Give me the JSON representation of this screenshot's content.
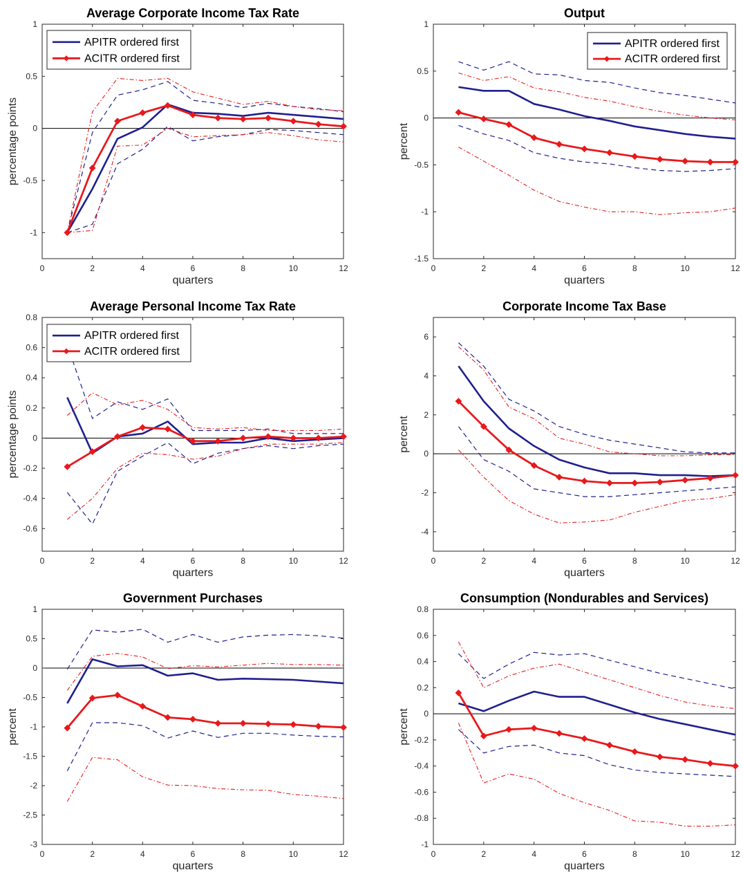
{
  "colors": {
    "apitr": "#1f1f8f",
    "acitr": "#e8191c",
    "axis": "#262626",
    "zero": "#000000"
  },
  "legend_labels": {
    "apitr": "APITR ordered first",
    "acitr": "ACITR ordered first"
  },
  "chart_data": [
    {
      "type": "line",
      "title": "Average Corporate Income Tax Rate",
      "xlabel": "quarters",
      "ylabel": "percentage points",
      "xlim": [
        0,
        12
      ],
      "ylim": [
        -1.25,
        1
      ],
      "xticks": [
        0,
        2,
        4,
        6,
        8,
        10,
        12
      ],
      "yticks": [
        -1,
        -0.5,
        0,
        0.5,
        1
      ],
      "ytick_labels": [
        "-1",
        "-0.5",
        "0",
        "0.5",
        "1"
      ],
      "legend": "top-left",
      "x": [
        1,
        2,
        3,
        4,
        5,
        6,
        7,
        8,
        9,
        10,
        11,
        12
      ],
      "series": [
        {
          "name": "APITR ordered first",
          "role": "apitr-main",
          "values": [
            -1.0,
            -0.58,
            -0.1,
            0.01,
            0.23,
            0.15,
            0.14,
            0.12,
            0.15,
            0.13,
            0.11,
            0.09
          ]
        },
        {
          "role": "apitr-upper",
          "values": [
            -1.0,
            -0.04,
            0.32,
            0.37,
            0.45,
            0.27,
            0.24,
            0.2,
            0.24,
            0.21,
            0.19,
            0.16
          ]
        },
        {
          "role": "apitr-lower",
          "values": [
            -1.0,
            -0.92,
            -0.34,
            -0.2,
            0.02,
            -0.12,
            -0.08,
            -0.06,
            -0.01,
            -0.02,
            -0.04,
            -0.06
          ]
        },
        {
          "name": "ACITR ordered first",
          "role": "acitr-main",
          "values": [
            -1.0,
            -0.38,
            0.07,
            0.15,
            0.22,
            0.13,
            0.1,
            0.09,
            0.1,
            0.07,
            0.04,
            0.02
          ]
        },
        {
          "role": "acitr-upper",
          "values": [
            -1.0,
            0.16,
            0.48,
            0.46,
            0.48,
            0.35,
            0.29,
            0.23,
            0.26,
            0.21,
            0.18,
            0.17
          ]
        },
        {
          "role": "acitr-lower",
          "values": [
            -1.0,
            -0.98,
            -0.17,
            -0.16,
            0.0,
            -0.08,
            -0.07,
            -0.06,
            -0.04,
            -0.07,
            -0.11,
            -0.13
          ]
        }
      ]
    },
    {
      "type": "line",
      "title": "Output",
      "xlabel": "quarters",
      "ylabel": "percent",
      "xlim": [
        0,
        12
      ],
      "ylim": [
        -1.5,
        1
      ],
      "xticks": [
        0,
        2,
        4,
        6,
        8,
        10,
        12
      ],
      "yticks": [
        -1.5,
        -1,
        -0.5,
        0,
        0.5,
        1
      ],
      "ytick_labels": [
        "-1.5",
        "-1",
        "-0.5",
        "0",
        "0.5",
        "1"
      ],
      "legend": "top-right",
      "x": [
        1,
        2,
        3,
        4,
        5,
        6,
        7,
        8,
        9,
        10,
        11,
        12
      ],
      "series": [
        {
          "name": "APITR ordered first",
          "role": "apitr-main",
          "values": [
            0.33,
            0.29,
            0.29,
            0.15,
            0.09,
            0.02,
            -0.03,
            -0.09,
            -0.13,
            -0.17,
            -0.2,
            -0.22
          ]
        },
        {
          "role": "apitr-upper",
          "values": [
            0.6,
            0.51,
            0.6,
            0.47,
            0.46,
            0.4,
            0.38,
            0.32,
            0.27,
            0.24,
            0.2,
            0.16
          ]
        },
        {
          "role": "apitr-lower",
          "values": [
            -0.08,
            -0.17,
            -0.24,
            -0.37,
            -0.43,
            -0.47,
            -0.49,
            -0.53,
            -0.56,
            -0.57,
            -0.56,
            -0.54
          ]
        },
        {
          "name": "ACITR ordered first",
          "role": "acitr-main",
          "values": [
            0.06,
            -0.01,
            -0.07,
            -0.21,
            -0.28,
            -0.33,
            -0.37,
            -0.41,
            -0.44,
            -0.46,
            -0.47,
            -0.47
          ]
        },
        {
          "role": "acitr-upper",
          "values": [
            0.48,
            0.4,
            0.44,
            0.32,
            0.28,
            0.22,
            0.18,
            0.12,
            0.07,
            0.03,
            0.0,
            -0.02
          ]
        },
        {
          "role": "acitr-lower",
          "values": [
            -0.31,
            -0.46,
            -0.61,
            -0.77,
            -0.89,
            -0.95,
            -1.0,
            -1.0,
            -1.03,
            -1.01,
            -1.0,
            -0.96
          ]
        }
      ]
    },
    {
      "type": "line",
      "title": "Average Personal Income Tax Rate",
      "xlabel": "quarters",
      "ylabel": "percentage points",
      "xlim": [
        0,
        12
      ],
      "ylim": [
        -0.75,
        0.8
      ],
      "xticks": [
        0,
        2,
        4,
        6,
        8,
        10,
        12
      ],
      "yticks": [
        -0.6,
        -0.4,
        -0.2,
        0,
        0.2,
        0.4,
        0.6,
        0.8
      ],
      "ytick_labels": [
        "-0.6",
        "-0.4",
        "-0.2",
        "0",
        "0.2",
        "0.4",
        "0.6",
        "0.8"
      ],
      "legend": "top-left",
      "x": [
        1,
        2,
        3,
        4,
        5,
        6,
        7,
        8,
        9,
        10,
        11,
        12
      ],
      "series": [
        {
          "name": "APITR ordered first",
          "role": "apitr-main",
          "values": [
            0.27,
            -0.1,
            0.01,
            0.03,
            0.11,
            -0.04,
            -0.03,
            -0.03,
            0.0,
            -0.02,
            -0.01,
            0.0
          ]
        },
        {
          "role": "apitr-upper",
          "values": [
            0.62,
            0.13,
            0.24,
            0.19,
            0.26,
            0.05,
            0.05,
            0.05,
            0.06,
            0.03,
            0.03,
            0.03
          ]
        },
        {
          "role": "apitr-lower",
          "values": [
            -0.36,
            -0.57,
            -0.22,
            -0.12,
            -0.03,
            -0.17,
            -0.1,
            -0.07,
            -0.05,
            -0.07,
            -0.05,
            -0.04
          ]
        },
        {
          "name": "ACITR ordered first",
          "role": "acitr-main",
          "values": [
            -0.19,
            -0.09,
            0.01,
            0.07,
            0.06,
            -0.02,
            -0.02,
            0.0,
            0.01,
            0.0,
            0.0,
            0.01
          ]
        },
        {
          "role": "acitr-upper",
          "values": [
            0.15,
            0.3,
            0.22,
            0.25,
            0.19,
            0.07,
            0.06,
            0.07,
            0.05,
            0.05,
            0.05,
            0.06
          ]
        },
        {
          "role": "acitr-lower",
          "values": [
            -0.54,
            -0.4,
            -0.2,
            -0.1,
            -0.11,
            -0.14,
            -0.12,
            -0.07,
            -0.04,
            -0.04,
            -0.04,
            -0.03
          ]
        }
      ]
    },
    {
      "type": "line",
      "title": "Corporate Income Tax Base",
      "xlabel": "quarters",
      "ylabel": "percent",
      "xlim": [
        0,
        12
      ],
      "ylim": [
        -5,
        7
      ],
      "xticks": [
        0,
        2,
        4,
        6,
        8,
        10,
        12
      ],
      "yticks": [
        -4,
        -2,
        0,
        2,
        4,
        6
      ],
      "ytick_labels": [
        "-4",
        "-2",
        "0",
        "2",
        "4",
        "6"
      ],
      "legend": "none",
      "x": [
        1,
        2,
        3,
        4,
        5,
        6,
        7,
        8,
        9,
        10,
        11,
        12
      ],
      "series": [
        {
          "name": "APITR ordered first",
          "role": "apitr-main",
          "values": [
            4.5,
            2.7,
            1.3,
            0.4,
            -0.3,
            -0.7,
            -1.0,
            -1.0,
            -1.1,
            -1.1,
            -1.15,
            -1.1
          ]
        },
        {
          "role": "apitr-upper",
          "values": [
            5.7,
            4.5,
            2.8,
            2.2,
            1.4,
            1.0,
            0.7,
            0.5,
            0.3,
            0.1,
            0.05,
            0.05
          ]
        },
        {
          "role": "apitr-lower",
          "values": [
            1.4,
            -0.3,
            -0.9,
            -1.8,
            -2.0,
            -2.2,
            -2.2,
            -2.1,
            -2.0,
            -1.9,
            -1.8,
            -1.7
          ]
        },
        {
          "name": "ACITR ordered first",
          "role": "acitr-main",
          "values": [
            2.7,
            1.4,
            0.2,
            -0.6,
            -1.2,
            -1.4,
            -1.5,
            -1.5,
            -1.45,
            -1.35,
            -1.25,
            -1.1
          ]
        },
        {
          "role": "acitr-upper",
          "values": [
            5.5,
            4.3,
            2.4,
            1.8,
            0.8,
            0.5,
            0.1,
            0.0,
            -0.1,
            -0.1,
            -0.05,
            -0.05
          ]
        },
        {
          "role": "acitr-lower",
          "values": [
            0.2,
            -1.2,
            -2.4,
            -3.1,
            -3.55,
            -3.5,
            -3.4,
            -3.0,
            -2.7,
            -2.4,
            -2.3,
            -2.1
          ]
        }
      ]
    },
    {
      "type": "line",
      "title": "Government Purchases",
      "xlabel": "quarters",
      "ylabel": "percent",
      "xlim": [
        0,
        12
      ],
      "ylim": [
        -3,
        1
      ],
      "xticks": [
        0,
        2,
        4,
        6,
        8,
        10,
        12
      ],
      "yticks": [
        -3,
        -2.5,
        -2,
        -1.5,
        -1,
        -0.5,
        0,
        0.5,
        1
      ],
      "ytick_labels": [
        "-3",
        "-2.5",
        "-2",
        "-1.5",
        "-1",
        "-0.5",
        "0",
        "0.5",
        "1"
      ],
      "legend": "none",
      "x": [
        1,
        2,
        3,
        4,
        5,
        6,
        7,
        8,
        9,
        10,
        11,
        12
      ],
      "series": [
        {
          "name": "APITR ordered first",
          "role": "apitr-main",
          "values": [
            -0.6,
            0.15,
            0.03,
            0.05,
            -0.13,
            -0.09,
            -0.2,
            -0.18,
            -0.19,
            -0.2,
            -0.23,
            -0.26
          ]
        },
        {
          "role": "apitr-upper",
          "values": [
            -0.02,
            0.65,
            0.61,
            0.66,
            0.44,
            0.57,
            0.44,
            0.53,
            0.56,
            0.57,
            0.55,
            0.51
          ]
        },
        {
          "role": "apitr-lower",
          "values": [
            -1.75,
            -0.93,
            -0.93,
            -0.98,
            -1.19,
            -1.07,
            -1.18,
            -1.11,
            -1.11,
            -1.14,
            -1.16,
            -1.17
          ]
        },
        {
          "name": "ACITR ordered first",
          "role": "acitr-main",
          "values": [
            -1.02,
            -0.51,
            -0.46,
            -0.65,
            -0.84,
            -0.87,
            -0.94,
            -0.94,
            -0.95,
            -0.96,
            -0.99,
            -1.01
          ]
        },
        {
          "role": "acitr-upper",
          "values": [
            -0.38,
            0.2,
            0.25,
            0.19,
            -0.01,
            0.04,
            0.02,
            0.05,
            0.08,
            0.06,
            0.06,
            0.05
          ]
        },
        {
          "role": "acitr-lower",
          "values": [
            -2.27,
            -1.52,
            -1.56,
            -1.85,
            -1.99,
            -2.0,
            -2.05,
            -2.07,
            -2.08,
            -2.15,
            -2.18,
            -2.22
          ]
        }
      ]
    },
    {
      "type": "line",
      "title": "Consumption (Nondurables and Services)",
      "xlabel": "quarters",
      "ylabel": "percent",
      "xlim": [
        0,
        12
      ],
      "ylim": [
        -1,
        0.8
      ],
      "xticks": [
        0,
        2,
        4,
        6,
        8,
        10,
        12
      ],
      "yticks": [
        -1,
        -0.8,
        -0.6,
        -0.4,
        -0.2,
        0,
        0.2,
        0.4,
        0.6,
        0.8
      ],
      "ytick_labels": [
        "-1",
        "-0.8",
        "-0.6",
        "-0.4",
        "-0.2",
        "0",
        "0.2",
        "0.4",
        "0.6",
        "0.8"
      ],
      "legend": "none",
      "x": [
        1,
        2,
        3,
        4,
        5,
        6,
        7,
        8,
        9,
        10,
        11,
        12
      ],
      "series": [
        {
          "name": "APITR ordered first",
          "role": "apitr-main",
          "values": [
            0.08,
            0.02,
            0.1,
            0.17,
            0.13,
            0.13,
            0.07,
            0.01,
            -0.04,
            -0.08,
            -0.12,
            -0.16
          ]
        },
        {
          "role": "apitr-upper",
          "values": [
            0.46,
            0.27,
            0.38,
            0.47,
            0.45,
            0.46,
            0.41,
            0.36,
            0.31,
            0.27,
            0.23,
            0.19
          ]
        },
        {
          "role": "apitr-lower",
          "values": [
            -0.12,
            -0.3,
            -0.25,
            -0.24,
            -0.3,
            -0.32,
            -0.39,
            -0.43,
            -0.45,
            -0.46,
            -0.47,
            -0.48
          ]
        },
        {
          "name": "ACITR ordered first",
          "role": "acitr-main",
          "values": [
            0.16,
            -0.17,
            -0.12,
            -0.11,
            -0.15,
            -0.19,
            -0.24,
            -0.29,
            -0.33,
            -0.35,
            -0.38,
            -0.4
          ]
        },
        {
          "role": "acitr-upper",
          "values": [
            0.55,
            0.2,
            0.29,
            0.35,
            0.38,
            0.32,
            0.26,
            0.2,
            0.14,
            0.09,
            0.06,
            0.04
          ]
        },
        {
          "role": "acitr-lower",
          "values": [
            -0.07,
            -0.53,
            -0.46,
            -0.5,
            -0.61,
            -0.68,
            -0.74,
            -0.82,
            -0.83,
            -0.86,
            -0.86,
            -0.85
          ]
        }
      ]
    }
  ]
}
